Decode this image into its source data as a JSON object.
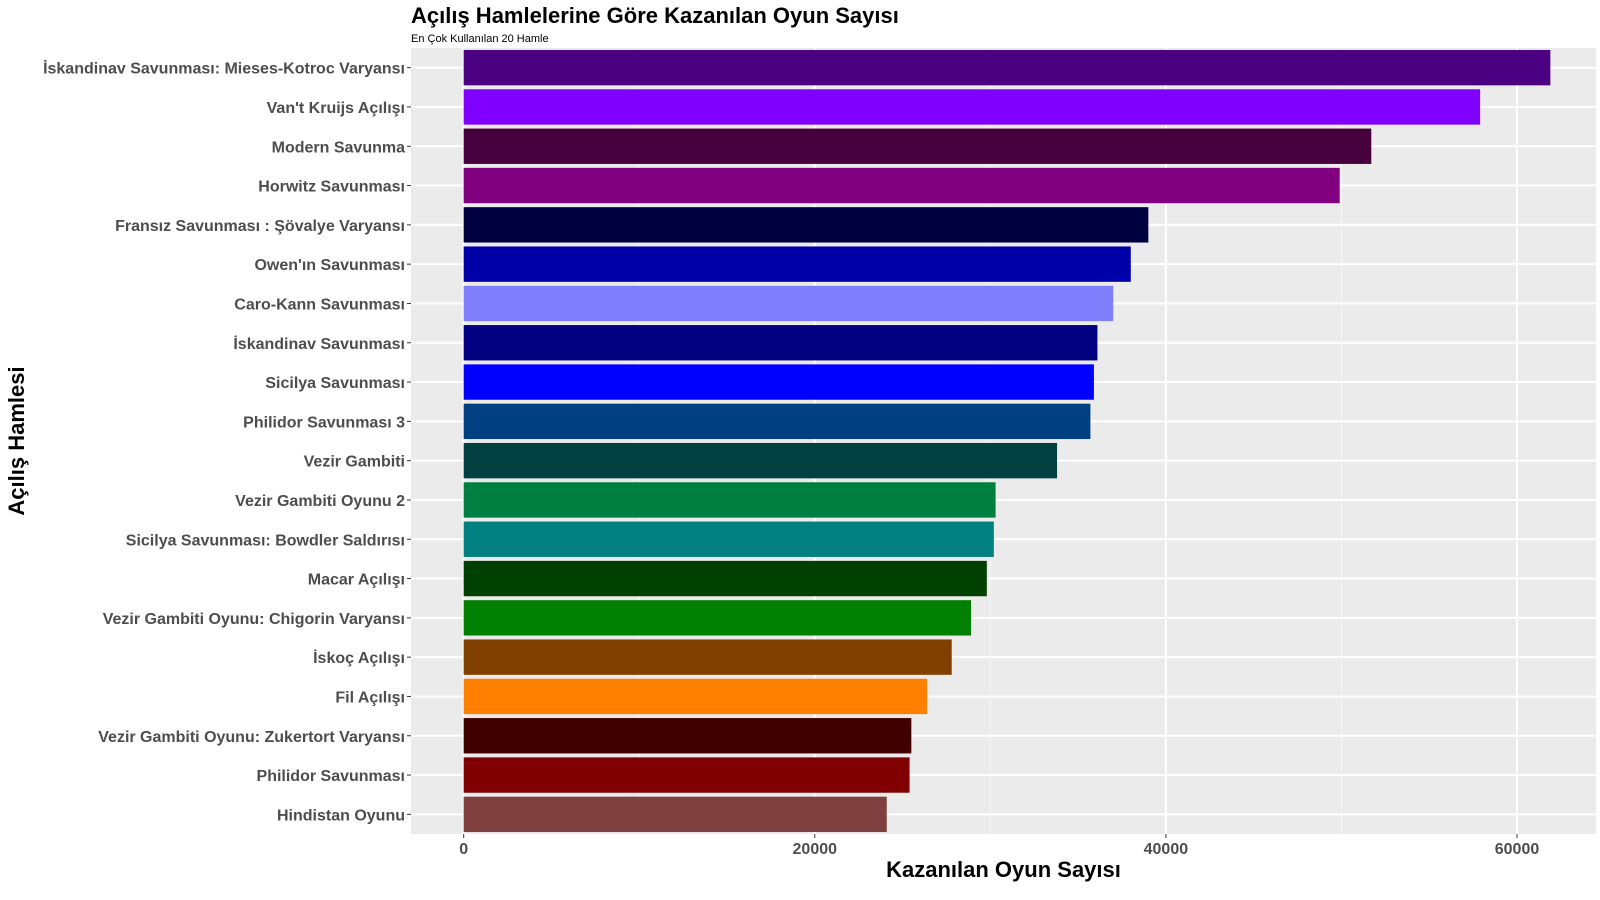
{
  "chart_data": {
    "type": "bar",
    "orientation": "horizontal",
    "title": "Açılış Hamlelerine Göre Kazanılan Oyun Sayısı",
    "subtitle": "En Çok Kullanılan 20 Hamle",
    "xlabel": "Kazanılan Oyun Sayısı",
    "ylabel": "Açılış Hamlesi",
    "xlim": [
      -3000,
      64500
    ],
    "xticks": [
      0,
      20000,
      40000,
      60000
    ],
    "grid": true,
    "legend": "none",
    "background": "#EBEBEB",
    "categories": [
      "İskandinav Savunması: Mieses-Kotroc Varyansı",
      "Van't Kruijs Açılışı",
      "Modern Savunma",
      "Horwitz Savunması",
      "Fransız Savunması : Şövalye Varyansı",
      "Owen'ın Savunması",
      "Caro-Kann Savunması",
      "İskandinav Savunması",
      "Sicilya Savunması",
      "Philidor Savunması 3",
      "Vezir Gambiti",
      "Vezir Gambiti Oyunu 2",
      "Sicilya Savunması: Bowdler Saldırısı",
      "Macar Açılışı",
      "Vezir Gambiti Oyunu: Chigorin Varyansı",
      "İskoç Açılışı",
      "Fil Açılışı",
      "Vezir Gambiti Oyunu: Zukertort Varyansı",
      "Philidor Savunması",
      "Hindistan Oyunu"
    ],
    "values": [
      61900,
      57900,
      51700,
      49900,
      39000,
      38000,
      37000,
      36100,
      35900,
      35700,
      33800,
      30300,
      30200,
      29800,
      28900,
      27800,
      26400,
      25500,
      25400,
      24100
    ],
    "colors": [
      "#4B0082",
      "#8000FF",
      "#45003D",
      "#800080",
      "#000040",
      "#0000A8",
      "#8080FF",
      "#000080",
      "#0000FF",
      "#004080",
      "#004040",
      "#008040",
      "#008080",
      "#004000",
      "#008000",
      "#804000",
      "#FF8000",
      "#400000",
      "#800000",
      "#804040"
    ]
  }
}
